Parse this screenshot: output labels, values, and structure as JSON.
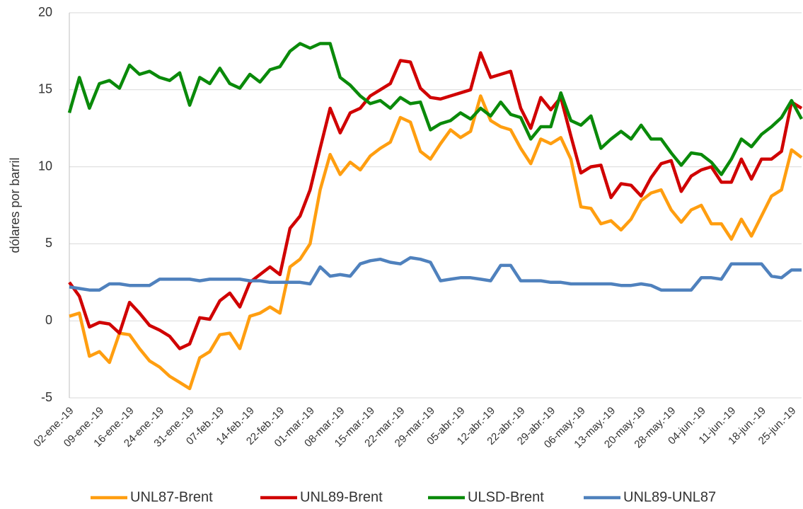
{
  "chart_data": {
    "type": "line",
    "ylabel": "dólares por barril",
    "categories": [
      "02-ene.-19",
      null,
      null,
      "09-ene.-19",
      null,
      null,
      "16-ene.-19",
      null,
      null,
      "24-ene.-19",
      null,
      null,
      "31-ene.-19",
      null,
      null,
      "07-feb.-19",
      null,
      null,
      "14-feb.-19",
      null,
      null,
      "22-feb.-19",
      null,
      null,
      "01-mar.-19",
      null,
      null,
      "08-mar.-19",
      null,
      null,
      "15-mar.-19",
      null,
      null,
      "22-mar.-19",
      null,
      null,
      "29-mar.-19",
      null,
      null,
      "05-abr.-19",
      null,
      null,
      "12-abr.-19",
      null,
      null,
      "22-abr.-19",
      null,
      null,
      "29-abr.-19",
      null,
      null,
      "06-may.-19",
      null,
      null,
      "13-may.-19",
      null,
      null,
      "20-may.-19",
      null,
      null,
      "28-may.-19",
      null,
      null,
      "04-jun.-19",
      null,
      null,
      "11-jun.-19",
      null,
      null,
      "18-jun.-19",
      null,
      null,
      "25-jun.-19",
      null
    ],
    "series": [
      {
        "name": "UNL87-Brent",
        "color": "#ff9e10",
        "values": [
          0.3,
          0.5,
          -2.3,
          -2.0,
          -2.7,
          -0.8,
          -0.9,
          -1.8,
          -2.6,
          -3.0,
          -3.6,
          -4.0,
          -4.4,
          -2.4,
          -2.0,
          -0.9,
          -0.8,
          -1.8,
          0.3,
          0.5,
          0.9,
          0.5,
          3.5,
          4.0,
          5.0,
          8.5,
          10.8,
          9.5,
          10.3,
          9.8,
          10.7,
          11.2,
          11.6,
          13.2,
          12.9,
          11.0,
          10.5,
          11.5,
          12.4,
          11.9,
          12.3,
          14.6,
          13.0,
          12.6,
          12.4,
          11.2,
          10.2,
          11.8,
          11.5,
          11.9,
          10.5,
          7.4,
          7.3,
          6.3,
          6.5,
          5.9,
          6.6,
          7.8,
          8.3,
          8.5,
          7.2,
          6.4,
          7.2,
          7.5,
          6.3,
          6.3,
          5.3,
          6.6,
          5.5,
          6.8,
          8.1,
          8.5,
          11.1,
          10.6
        ]
      },
      {
        "name": "UNL89-Brent",
        "color": "#d00000",
        "values": [
          2.5,
          1.6,
          -0.4,
          -0.1,
          -0.2,
          -0.8,
          1.2,
          0.5,
          -0.3,
          -0.6,
          -1.0,
          -1.8,
          -1.5,
          0.2,
          0.1,
          1.3,
          1.8,
          0.9,
          2.5,
          3.0,
          3.5,
          3.0,
          6.0,
          6.8,
          8.5,
          11.2,
          13.8,
          12.2,
          13.5,
          13.8,
          14.6,
          15.0,
          15.4,
          16.9,
          16.8,
          15.1,
          14.5,
          14.4,
          14.6,
          14.8,
          15.0,
          17.4,
          15.8,
          16.0,
          16.2,
          13.8,
          12.5,
          14.5,
          13.7,
          14.5,
          12.0,
          9.6,
          10.0,
          10.1,
          8.0,
          8.9,
          8.8,
          8.1,
          9.3,
          10.2,
          10.4,
          8.4,
          9.4,
          9.8,
          10.0,
          9.0,
          9.0,
          10.5,
          9.2,
          10.5,
          10.5,
          11.0,
          14.2,
          13.8
        ]
      },
      {
        "name": "ULSD-Brent",
        "color": "#0a8a0a",
        "values": [
          13.5,
          15.8,
          13.8,
          15.4,
          15.6,
          15.1,
          16.6,
          16.0,
          16.2,
          15.8,
          15.6,
          16.1,
          14.0,
          15.8,
          15.4,
          16.4,
          15.4,
          15.1,
          16.0,
          15.5,
          16.3,
          16.5,
          17.5,
          18.0,
          17.7,
          18.0,
          18.0,
          15.8,
          15.3,
          14.6,
          14.1,
          14.3,
          13.8,
          14.5,
          14.1,
          14.2,
          12.4,
          12.8,
          13.0,
          13.5,
          13.1,
          13.8,
          13.3,
          14.2,
          13.4,
          13.2,
          11.8,
          12.6,
          12.6,
          14.8,
          13.0,
          12.7,
          13.3,
          11.2,
          11.8,
          12.3,
          11.8,
          12.7,
          11.8,
          11.8,
          10.9,
          10.1,
          10.9,
          10.8,
          10.3,
          9.5,
          10.5,
          11.8,
          11.3,
          12.1,
          12.6,
          13.2,
          14.3,
          13.1
        ]
      },
      {
        "name": "UNL89-UNL87",
        "color": "#4f81bd",
        "values": [
          2.2,
          2.1,
          2.0,
          2.0,
          2.4,
          2.4,
          2.3,
          2.3,
          2.3,
          2.7,
          2.7,
          2.7,
          2.7,
          2.6,
          2.7,
          2.7,
          2.7,
          2.7,
          2.6,
          2.6,
          2.5,
          2.5,
          2.5,
          2.5,
          2.4,
          3.5,
          2.9,
          3.0,
          2.9,
          3.7,
          3.9,
          4.0,
          3.8,
          3.7,
          4.1,
          4.0,
          3.8,
          2.6,
          2.7,
          2.8,
          2.8,
          2.7,
          2.6,
          3.6,
          3.6,
          2.6,
          2.6,
          2.6,
          2.5,
          2.5,
          2.4,
          2.4,
          2.4,
          2.4,
          2.4,
          2.3,
          2.3,
          2.4,
          2.3,
          2.0,
          2.0,
          2.0,
          2.0,
          2.8,
          2.8,
          2.7,
          3.7,
          3.7,
          3.7,
          3.7,
          2.9,
          2.8,
          3.3,
          3.3
        ]
      }
    ],
    "ylim": [
      -5,
      20
    ],
    "yticks": [
      -5,
      0,
      5,
      10,
      15,
      20
    ],
    "grid": true,
    "legend": "bottom"
  }
}
